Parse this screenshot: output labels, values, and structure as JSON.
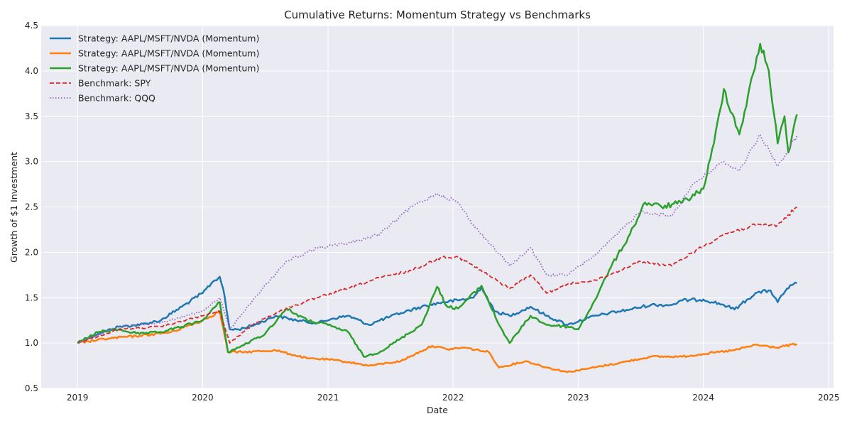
{
  "chart_data": {
    "type": "line",
    "title": "Cumulative Returns: Momentum Strategy vs Benchmarks",
    "xlabel": "Date",
    "ylabel": "Growth of $1 Investment",
    "xlim": [
      "2018-09-17",
      "2025-01-15"
    ],
    "ylim": [
      0.5,
      4.5
    ],
    "xticks": [
      "2019",
      "2020",
      "2021",
      "2022",
      "2023",
      "2024",
      "2025"
    ],
    "yticks": [
      "0.5",
      "1.0",
      "1.5",
      "2.0",
      "2.5",
      "3.0",
      "3.5",
      "4.0",
      "4.5"
    ],
    "grid": true,
    "legend_position": "top-left",
    "background": "#eaeaf2",
    "series": [
      {
        "name": "Strategy: AAPL/MSFT/NVDA (Momentum)",
        "color": "#1f77b4",
        "dash": "solid",
        "width": 2.5,
        "points": [
          [
            "2019-01-01",
            1.0
          ],
          [
            "2019-03-01",
            1.1
          ],
          [
            "2019-05-01",
            1.18
          ],
          [
            "2019-07-01",
            1.2
          ],
          [
            "2019-09-01",
            1.25
          ],
          [
            "2019-11-01",
            1.4
          ],
          [
            "2020-01-01",
            1.55
          ],
          [
            "2020-02-01",
            1.68
          ],
          [
            "2020-02-20",
            1.73
          ],
          [
            "2020-03-01",
            1.6
          ],
          [
            "2020-03-20",
            1.15
          ],
          [
            "2020-04-15",
            1.15
          ],
          [
            "2020-06-01",
            1.2
          ],
          [
            "2020-08-01",
            1.3
          ],
          [
            "2020-10-01",
            1.25
          ],
          [
            "2020-12-01",
            1.22
          ],
          [
            "2021-01-15",
            1.27
          ],
          [
            "2021-03-01",
            1.3
          ],
          [
            "2021-05-01",
            1.2
          ],
          [
            "2021-06-01",
            1.25
          ],
          [
            "2021-08-01",
            1.33
          ],
          [
            "2021-10-01",
            1.4
          ],
          [
            "2021-12-01",
            1.45
          ],
          [
            "2022-01-15",
            1.47
          ],
          [
            "2022-03-01",
            1.5
          ],
          [
            "2022-03-25",
            1.62
          ],
          [
            "2022-05-01",
            1.35
          ],
          [
            "2022-06-15",
            1.3
          ],
          [
            "2022-08-15",
            1.4
          ],
          [
            "2022-10-01",
            1.3
          ],
          [
            "2022-12-01",
            1.2
          ],
          [
            "2023-02-01",
            1.28
          ],
          [
            "2023-04-01",
            1.33
          ],
          [
            "2023-06-01",
            1.37
          ],
          [
            "2023-08-01",
            1.42
          ],
          [
            "2023-10-01",
            1.42
          ],
          [
            "2023-11-01",
            1.47
          ],
          [
            "2024-01-01",
            1.48
          ],
          [
            "2024-03-01",
            1.42
          ],
          [
            "2024-04-01",
            1.37
          ],
          [
            "2024-06-01",
            1.55
          ],
          [
            "2024-07-15",
            1.58
          ],
          [
            "2024-08-05",
            1.45
          ],
          [
            "2024-09-01",
            1.6
          ],
          [
            "2024-09-30",
            1.66
          ]
        ]
      },
      {
        "name": "Strategy: AAPL/MSFT/NVDA (Momentum)",
        "color": "#ff7f0e",
        "dash": "solid",
        "width": 2.5,
        "points": [
          [
            "2019-01-01",
            1.0
          ],
          [
            "2019-04-01",
            1.05
          ],
          [
            "2019-07-01",
            1.08
          ],
          [
            "2019-10-01",
            1.12
          ],
          [
            "2020-01-01",
            1.25
          ],
          [
            "2020-02-20",
            1.35
          ],
          [
            "2020-03-15",
            0.9
          ],
          [
            "2020-05-01",
            0.9
          ],
          [
            "2020-08-01",
            0.92
          ],
          [
            "2020-11-01",
            0.83
          ],
          [
            "2021-01-01",
            0.82
          ],
          [
            "2021-03-01",
            0.79
          ],
          [
            "2021-05-01",
            0.75
          ],
          [
            "2021-08-01",
            0.8
          ],
          [
            "2021-11-01",
            0.97
          ],
          [
            "2021-12-15",
            0.93
          ],
          [
            "2022-02-01",
            0.95
          ],
          [
            "2022-04-15",
            0.9
          ],
          [
            "2022-05-15",
            0.73
          ],
          [
            "2022-08-01",
            0.8
          ],
          [
            "2022-10-01",
            0.73
          ],
          [
            "2022-12-01",
            0.68
          ],
          [
            "2023-02-01",
            0.72
          ],
          [
            "2023-05-01",
            0.78
          ],
          [
            "2023-08-01",
            0.85
          ],
          [
            "2023-11-01",
            0.85
          ],
          [
            "2024-01-01",
            0.88
          ],
          [
            "2024-04-01",
            0.92
          ],
          [
            "2024-06-01",
            0.98
          ],
          [
            "2024-08-01",
            0.95
          ],
          [
            "2024-09-30",
            0.99
          ]
        ]
      },
      {
        "name": "Strategy: AAPL/MSFT/NVDA (Momentum)",
        "color": "#2ca02c",
        "dash": "solid",
        "width": 2.5,
        "points": [
          [
            "2019-01-01",
            1.0
          ],
          [
            "2019-03-01",
            1.12
          ],
          [
            "2019-05-01",
            1.15
          ],
          [
            "2019-07-01",
            1.1
          ],
          [
            "2019-09-01",
            1.12
          ],
          [
            "2019-11-01",
            1.18
          ],
          [
            "2020-01-01",
            1.25
          ],
          [
            "2020-02-20",
            1.45
          ],
          [
            "2020-03-15",
            0.9
          ],
          [
            "2020-04-15",
            0.95
          ],
          [
            "2020-07-01",
            1.1
          ],
          [
            "2020-09-01",
            1.38
          ],
          [
            "2020-11-01",
            1.25
          ],
          [
            "2021-01-01",
            1.2
          ],
          [
            "2021-03-01",
            1.12
          ],
          [
            "2021-04-15",
            0.85
          ],
          [
            "2021-06-01",
            0.9
          ],
          [
            "2021-08-01",
            1.05
          ],
          [
            "2021-10-01",
            1.2
          ],
          [
            "2021-11-15",
            1.62
          ],
          [
            "2021-12-15",
            1.4
          ],
          [
            "2022-01-15",
            1.38
          ],
          [
            "2022-03-25",
            1.63
          ],
          [
            "2022-05-15",
            1.2
          ],
          [
            "2022-06-15",
            1.0
          ],
          [
            "2022-08-15",
            1.3
          ],
          [
            "2022-10-01",
            1.2
          ],
          [
            "2022-12-01",
            1.18
          ],
          [
            "2023-01-01",
            1.15
          ],
          [
            "2023-02-01",
            1.35
          ],
          [
            "2023-03-01",
            1.55
          ],
          [
            "2023-04-01",
            1.8
          ],
          [
            "2023-06-01",
            2.2
          ],
          [
            "2023-07-15",
            2.55
          ],
          [
            "2023-09-01",
            2.5
          ],
          [
            "2023-11-01",
            2.55
          ],
          [
            "2024-01-01",
            2.7
          ],
          [
            "2024-02-01",
            3.2
          ],
          [
            "2024-03-01",
            3.8
          ],
          [
            "2024-04-15",
            3.3
          ],
          [
            "2024-06-15",
            4.3
          ],
          [
            "2024-07-10",
            4.0
          ],
          [
            "2024-08-05",
            3.2
          ],
          [
            "2024-08-25",
            3.5
          ],
          [
            "2024-09-05",
            3.1
          ],
          [
            "2024-09-30",
            3.52
          ]
        ]
      },
      {
        "name": "Benchmark: SPY",
        "color": "#d62728",
        "dash": "dashed",
        "width": 1.8,
        "points": [
          [
            "2019-01-01",
            1.0
          ],
          [
            "2019-05-01",
            1.15
          ],
          [
            "2019-09-01",
            1.18
          ],
          [
            "2020-01-01",
            1.3
          ],
          [
            "2020-02-20",
            1.35
          ],
          [
            "2020-03-20",
            1.0
          ],
          [
            "2020-06-01",
            1.22
          ],
          [
            "2020-09-01",
            1.38
          ],
          [
            "2020-12-01",
            1.5
          ],
          [
            "2021-03-01",
            1.6
          ],
          [
            "2021-06-01",
            1.72
          ],
          [
            "2021-09-01",
            1.8
          ],
          [
            "2021-12-01",
            1.95
          ],
          [
            "2022-01-15",
            1.95
          ],
          [
            "2022-03-01",
            1.85
          ],
          [
            "2022-06-15",
            1.6
          ],
          [
            "2022-08-15",
            1.75
          ],
          [
            "2022-10-01",
            1.55
          ],
          [
            "2022-12-01",
            1.65
          ],
          [
            "2023-03-01",
            1.7
          ],
          [
            "2023-07-01",
            1.9
          ],
          [
            "2023-10-01",
            1.85
          ],
          [
            "2023-12-01",
            2.0
          ],
          [
            "2024-03-01",
            2.2
          ],
          [
            "2024-06-01",
            2.3
          ],
          [
            "2024-08-05",
            2.3
          ],
          [
            "2024-09-30",
            2.5
          ]
        ]
      },
      {
        "name": "Benchmark: QQQ",
        "color": "#9467bd",
        "dash": "dotted",
        "width": 1.8,
        "points": [
          [
            "2019-01-01",
            1.0
          ],
          [
            "2019-05-01",
            1.18
          ],
          [
            "2019-09-01",
            1.22
          ],
          [
            "2020-01-01",
            1.35
          ],
          [
            "2020-02-20",
            1.5
          ],
          [
            "2020-03-20",
            1.15
          ],
          [
            "2020-06-01",
            1.5
          ],
          [
            "2020-09-01",
            1.9
          ],
          [
            "2020-12-01",
            2.05
          ],
          [
            "2021-03-01",
            2.1
          ],
          [
            "2021-06-01",
            2.2
          ],
          [
            "2021-09-01",
            2.5
          ],
          [
            "2021-11-15",
            2.65
          ],
          [
            "2022-01-15",
            2.55
          ],
          [
            "2022-03-01",
            2.3
          ],
          [
            "2022-06-15",
            1.85
          ],
          [
            "2022-08-15",
            2.05
          ],
          [
            "2022-10-01",
            1.75
          ],
          [
            "2022-12-01",
            1.75
          ],
          [
            "2023-03-01",
            2.0
          ],
          [
            "2023-07-01",
            2.45
          ],
          [
            "2023-10-01",
            2.4
          ],
          [
            "2023-12-01",
            2.75
          ],
          [
            "2024-03-01",
            3.0
          ],
          [
            "2024-04-15",
            2.9
          ],
          [
            "2024-06-15",
            3.3
          ],
          [
            "2024-08-05",
            2.95
          ],
          [
            "2024-09-30",
            3.28
          ]
        ]
      }
    ]
  }
}
